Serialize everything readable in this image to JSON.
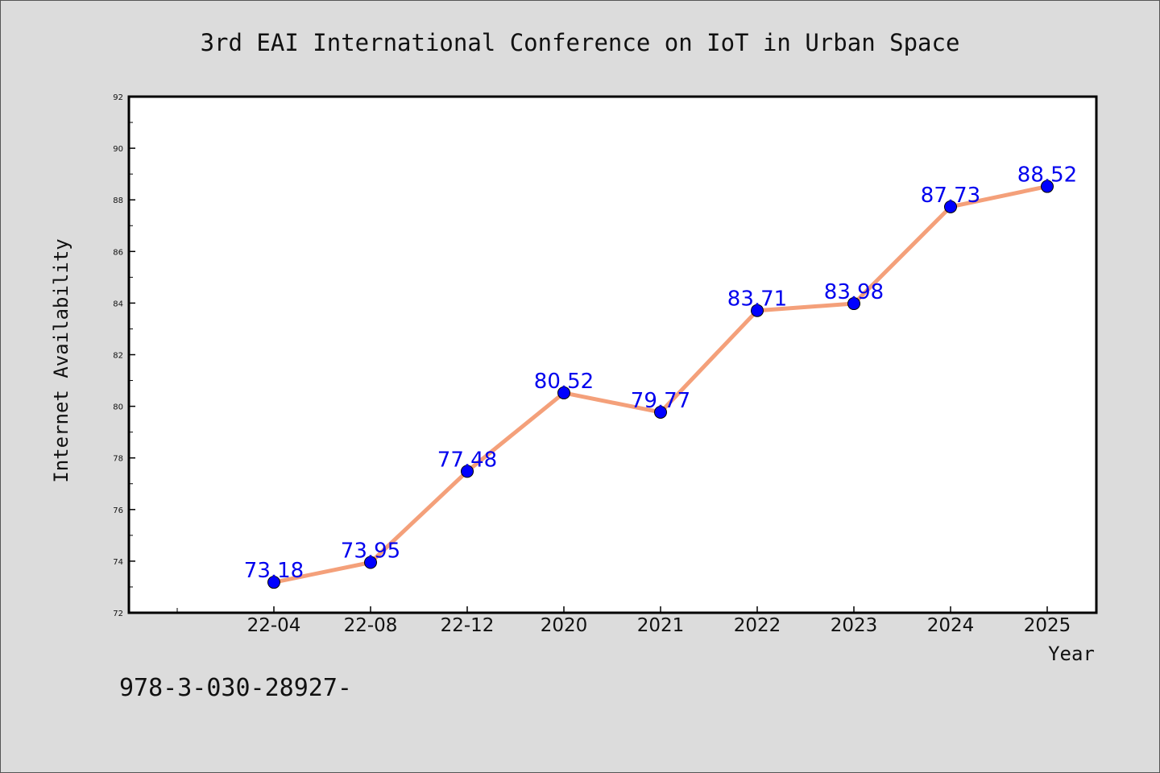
{
  "chart_data": {
    "type": "line",
    "title": "3rd EAI International Conference on IoT in Urban Space",
    "xlabel": "Year",
    "ylabel": "Internet Availability",
    "categories": [
      "22-04",
      "22-08",
      "22-12",
      "2020",
      "2021",
      "2022",
      "2023",
      "2024",
      "2025"
    ],
    "series": [
      {
        "values": [
          73.18,
          73.95,
          77.48,
          80.52,
          79.77,
          83.71,
          83.98,
          87.73,
          88.52
        ],
        "labels": [
          "73.18",
          "73.95",
          "77.48",
          "80.52",
          "79.77",
          "83.71",
          "83.98",
          "87.73",
          "88.52"
        ],
        "line_color": "#f4a07a",
        "marker_color": "#0000ff"
      }
    ],
    "ylim": [
      72,
      92
    ],
    "yticks": [
      "72",
      "74",
      "76",
      "78",
      "80",
      "82",
      "84",
      "86",
      "88",
      "90",
      "92"
    ],
    "grid": false,
    "legend": "none"
  },
  "footer": {
    "text": "978-3-030-28927-"
  },
  "colors": {
    "background": "#dcdcdc",
    "plot_background": "#ffffff",
    "data_label": "#0000ee"
  }
}
